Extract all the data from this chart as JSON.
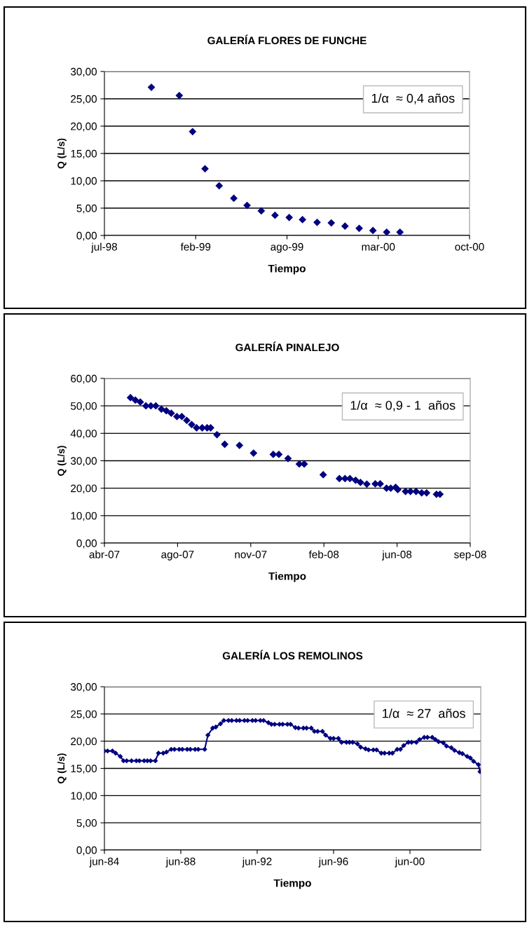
{
  "chart_data": [
    {
      "type": "scatter",
      "title": "GALERÍA FLORES DE FUNCHE",
      "xlabel": "Tiempo",
      "ylabel": "Q (L/s)",
      "annotations": [
        "1/α  ≈ 0,4 años"
      ],
      "marker": "diamond",
      "grid": "y",
      "x": [
        "1998-10-24",
        "1998-12-26",
        "1999-01-25",
        "1999-02-22",
        "1999-03-26",
        "1999-04-28",
        "1999-05-28",
        "1999-06-29",
        "1999-07-30",
        "1999-08-31",
        "1999-09-30",
        "1999-11-02",
        "1999-12-04",
        "2000-01-04",
        "2000-02-05",
        "2000-03-07",
        "2000-04-07",
        "2000-05-07"
      ],
      "series": [
        {
          "color": "#000080",
          "values": [
            27.1,
            25.6,
            19.0,
            12.2,
            9.1,
            6.8,
            5.5,
            4.5,
            3.7,
            3.3,
            2.9,
            2.4,
            2.3,
            1.7,
            1.3,
            0.9,
            0.6,
            0.6
          ]
        }
      ],
      "xlim": [
        "1998-07-10",
        "2000-10-11"
      ],
      "xticks": [
        {
          "value": "1998-07-10",
          "label": "jul-98"
        },
        {
          "value": "1999-02-01",
          "label": "feb-99"
        },
        {
          "value": "1999-08-26",
          "label": "ago-99"
        },
        {
          "value": "2000-03-19",
          "label": "mar-00"
        },
        {
          "value": "2000-10-11",
          "label": "oct-00"
        }
      ],
      "ylim": [
        0,
        30
      ],
      "yticks": [
        {
          "value": 0,
          "label": "0,00"
        },
        {
          "value": 5,
          "label": "5,00"
        },
        {
          "value": 10,
          "label": "10,00"
        },
        {
          "value": 15,
          "label": "15,00"
        },
        {
          "value": 20,
          "label": "20,00"
        },
        {
          "value": 25,
          "label": "25,00"
        },
        {
          "value": 30,
          "label": "30,00"
        }
      ]
    },
    {
      "type": "scatter",
      "title": "GALERÍA PINALEJO",
      "xlabel": "Tiempo",
      "ylabel": "Q (L/s)",
      "annotations": [
        "1/α  ≈ 0,9 - 1  años"
      ],
      "marker": "diamond",
      "grid": "y",
      "x": [
        "2007-05-27",
        "2007-06-03",
        "2007-06-10",
        "2007-06-18",
        "2007-06-25",
        "2007-07-02",
        "2007-07-10",
        "2007-07-17",
        "2007-07-24",
        "2007-08-01",
        "2007-08-08",
        "2007-08-15",
        "2007-08-22",
        "2007-08-29",
        "2007-09-06",
        "2007-09-13",
        "2007-09-18",
        "2007-09-27",
        "2007-10-08",
        "2007-10-29",
        "2007-11-18",
        "2007-12-16",
        "2007-12-24",
        "2008-01-06",
        "2008-01-22",
        "2008-01-29",
        "2008-02-25",
        "2008-03-19",
        "2008-03-27",
        "2008-04-03",
        "2008-04-11",
        "2008-04-18",
        "2008-04-27",
        "2008-05-09",
        "2008-05-16",
        "2008-05-25",
        "2008-05-31",
        "2008-06-07",
        "2008-06-10",
        "2008-06-21",
        "2008-06-28",
        "2008-07-06",
        "2008-07-14",
        "2008-07-21",
        "2008-08-04",
        "2008-08-09"
      ],
      "series": [
        {
          "color": "#000080",
          "values": [
            53.0,
            52.1,
            51.4,
            50.0,
            50.0,
            50.0,
            48.8,
            48.2,
            47.3,
            46.1,
            46.1,
            44.7,
            43.2,
            42.0,
            42.0,
            42.0,
            42.0,
            39.5,
            36.0,
            35.6,
            32.8,
            32.3,
            32.3,
            30.8,
            28.8,
            28.8,
            24.9,
            23.5,
            23.5,
            23.5,
            22.9,
            22.1,
            21.5,
            21.6,
            21.6,
            20.0,
            20.0,
            20.3,
            19.5,
            18.8,
            18.8,
            18.8,
            18.3,
            18.3,
            17.8,
            17.8
          ]
        }
      ],
      "xlim": [
        "2007-04-20",
        "2008-09-21"
      ],
      "xticks": [
        {
          "value": "2007-04-20",
          "label": "abr-07"
        },
        {
          "value": "2007-08-02",
          "label": "ago-07"
        },
        {
          "value": "2007-11-14",
          "label": "nov-07"
        },
        {
          "value": "2008-02-26",
          "label": "feb-08"
        },
        {
          "value": "2008-06-09",
          "label": "jun-08"
        },
        {
          "value": "2008-09-21",
          "label": "sep-08"
        }
      ],
      "ylim": [
        0,
        60
      ],
      "yticks": [
        {
          "value": 0,
          "label": "0,00"
        },
        {
          "value": 10,
          "label": "10,00"
        },
        {
          "value": 20,
          "label": "20,00"
        },
        {
          "value": 30,
          "label": "30,00"
        },
        {
          "value": 40,
          "label": "40,00"
        },
        {
          "value": 50,
          "label": "50,00"
        },
        {
          "value": 60,
          "label": "60,00"
        }
      ]
    },
    {
      "type": "line",
      "title": "GALERÍA LOS REMOLINOS",
      "xlabel": "Tiempo",
      "ylabel": "Q (L/s)",
      "annotations": [
        "1/α  ≈ 27  años"
      ],
      "marker": "diamond",
      "line_style": "solid",
      "grid": "y",
      "x": [
        "1984-06",
        "1984-08",
        "1984-11",
        "1985-01",
        "1985-04",
        "1985-06",
        "1985-08",
        "1985-11",
        "1986-02",
        "1986-04",
        "1986-07",
        "1986-09",
        "1986-11",
        "1987-02",
        "1987-04",
        "1987-07",
        "1987-09",
        "1987-12",
        "1988-02",
        "1988-05",
        "1988-07",
        "1988-10",
        "1988-12",
        "1989-03",
        "1989-05",
        "1989-09",
        "1989-11",
        "1990-02",
        "1990-04",
        "1990-07",
        "1990-09",
        "1990-12",
        "1991-02",
        "1991-05",
        "1991-07",
        "1991-10",
        "1991-12",
        "1992-03",
        "1992-05",
        "1992-08",
        "1992-10",
        "1993-01",
        "1993-03",
        "1993-05",
        "1993-08",
        "1993-10",
        "1994-01",
        "1994-03",
        "1994-06",
        "1994-08",
        "1994-11",
        "1995-01",
        "1995-04",
        "1995-06",
        "1995-08",
        "1995-11",
        "1996-01",
        "1996-04",
        "1996-06",
        "1996-09",
        "1996-11",
        "1997-02",
        "1997-04",
        "1997-06",
        "1997-09",
        "1997-11",
        "1998-02",
        "1998-04",
        "1998-07",
        "1998-09",
        "1998-12",
        "1999-02",
        "1999-05",
        "1999-07",
        "1999-10",
        "1999-12",
        "2000-02",
        "2000-05",
        "2000-07",
        "2000-10",
        "2000-12",
        "2001-03",
        "2001-05",
        "2001-08",
        "2001-10",
        "2001-12",
        "2002-03",
        "2002-05",
        "2002-08",
        "2002-10",
        "2003-01",
        "2003-03",
        "2003-06",
        "2003-08",
        "2003-10",
        "2004-01",
        "2004-02"
      ],
      "series": [
        {
          "color": "#000080",
          "values": [
            18.2,
            18.2,
            18.2,
            17.8,
            17.2,
            16.4,
            16.4,
            16.4,
            16.4,
            16.4,
            16.4,
            16.4,
            16.4,
            16.4,
            17.8,
            17.8,
            18.0,
            18.5,
            18.5,
            18.5,
            18.5,
            18.5,
            18.5,
            18.5,
            18.5,
            18.5,
            21.1,
            22.4,
            22.6,
            23.2,
            23.8,
            23.8,
            23.8,
            23.8,
            23.8,
            23.8,
            23.8,
            23.8,
            23.8,
            23.8,
            23.8,
            23.4,
            23.1,
            23.1,
            23.1,
            23.1,
            23.1,
            23.1,
            22.5,
            22.4,
            22.4,
            22.4,
            22.4,
            21.8,
            21.8,
            21.8,
            21.1,
            20.5,
            20.5,
            20.5,
            19.8,
            19.8,
            19.8,
            19.8,
            19.5,
            18.9,
            18.6,
            18.4,
            18.4,
            18.4,
            17.8,
            17.8,
            17.8,
            17.8,
            18.5,
            18.5,
            19.2,
            19.8,
            19.8,
            19.8,
            20.3,
            20.7,
            20.7,
            20.7,
            20.3,
            19.9,
            19.7,
            19.1,
            18.8,
            18.3,
            17.9,
            17.7,
            17.2,
            16.9,
            16.3,
            15.7,
            14.4
          ]
        }
      ],
      "xlim": [
        "1984-06",
        "2004-02-15"
      ],
      "xticks": [
        {
          "value": "1984-06",
          "label": "jun-84"
        },
        {
          "value": "1988-06",
          "label": "jun-88"
        },
        {
          "value": "1992-06",
          "label": "jun-92"
        },
        {
          "value": "1996-06",
          "label": "jun-96"
        },
        {
          "value": "2000-06",
          "label": "jun-00"
        }
      ],
      "ylim": [
        0,
        30
      ],
      "yticks": [
        {
          "value": 0,
          "label": "0,00"
        },
        {
          "value": 5,
          "label": "5,00"
        },
        {
          "value": 10,
          "label": "10,00"
        },
        {
          "value": 15,
          "label": "15,00"
        },
        {
          "value": 20,
          "label": "20,00"
        },
        {
          "value": 25,
          "label": "25,00"
        },
        {
          "value": 30,
          "label": "30,00"
        }
      ]
    }
  ]
}
